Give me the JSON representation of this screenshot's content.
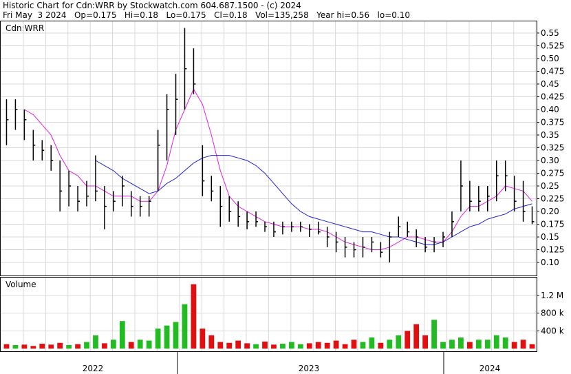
{
  "chart_data": [
    {
      "type": "ohlc",
      "title": "Historic Chart for Cdn:WRR by Stockwatch.com 604.687.1500 - (c) 2024",
      "subtitle": "Fri May  3 2024   Op=0.175   Hi=0.18   Lo=0.175   Cl=0.18   Vol=135,258   Year hi=0.56   lo=0.10",
      "label": "Cdn:WRR",
      "bar_color": "#000000",
      "high": [
        0.42,
        0.42,
        0.4,
        0.36,
        0.34,
        0.33,
        0.3,
        0.28,
        0.25,
        0.26,
        0.31,
        0.25,
        0.24,
        0.27,
        0.24,
        0.23,
        0.23,
        0.36,
        0.43,
        0.47,
        0.56,
        0.52,
        0.33,
        0.27,
        0.25,
        0.23,
        0.22,
        0.2,
        0.2,
        0.18,
        0.18,
        0.18,
        0.18,
        0.18,
        0.175,
        0.18,
        0.17,
        0.16,
        0.15,
        0.14,
        0.15,
        0.15,
        0.14,
        0.16,
        0.19,
        0.18,
        0.165,
        0.15,
        0.15,
        0.16,
        0.2,
        0.3,
        0.26,
        0.25,
        0.25,
        0.3,
        0.3,
        0.27,
        0.26,
        0.21
      ],
      "low": [
        0.33,
        0.36,
        0.34,
        0.3,
        0.3,
        0.28,
        0.2,
        0.21,
        0.2,
        0.21,
        0.22,
        0.165,
        0.2,
        0.21,
        0.19,
        0.19,
        0.19,
        0.24,
        0.3,
        0.35,
        0.4,
        0.43,
        0.23,
        0.22,
        0.17,
        0.18,
        0.17,
        0.165,
        0.17,
        0.16,
        0.15,
        0.155,
        0.16,
        0.16,
        0.15,
        0.155,
        0.13,
        0.12,
        0.11,
        0.11,
        0.11,
        0.12,
        0.11,
        0.1,
        0.15,
        0.15,
        0.13,
        0.12,
        0.12,
        0.13,
        0.15,
        0.2,
        0.2,
        0.2,
        0.2,
        0.22,
        0.24,
        0.2,
        0.18,
        0.175
      ],
      "close": [
        0.38,
        0.4,
        0.38,
        0.33,
        0.32,
        0.3,
        0.24,
        0.25,
        0.22,
        0.23,
        0.24,
        0.21,
        0.22,
        0.25,
        0.21,
        0.21,
        0.22,
        0.33,
        0.4,
        0.42,
        0.48,
        0.45,
        0.26,
        0.24,
        0.21,
        0.2,
        0.19,
        0.18,
        0.18,
        0.17,
        0.16,
        0.17,
        0.17,
        0.17,
        0.165,
        0.16,
        0.15,
        0.14,
        0.13,
        0.125,
        0.13,
        0.14,
        0.12,
        0.15,
        0.17,
        0.16,
        0.15,
        0.13,
        0.14,
        0.15,
        0.18,
        0.25,
        0.22,
        0.22,
        0.23,
        0.27,
        0.27,
        0.22,
        0.2,
        0.18
      ],
      "moving_averages": [
        {
          "color": "#e020e0",
          "values": [
            null,
            null,
            0.4,
            0.39,
            0.37,
            0.35,
            0.31,
            0.28,
            0.27,
            0.25,
            0.25,
            0.24,
            0.23,
            0.23,
            0.23,
            0.22,
            0.22,
            0.24,
            0.29,
            0.36,
            0.4,
            0.44,
            0.41,
            0.35,
            0.28,
            0.23,
            0.21,
            0.2,
            0.19,
            0.18,
            0.175,
            0.17,
            0.17,
            0.17,
            0.165,
            0.165,
            0.16,
            0.15,
            0.14,
            0.135,
            0.13,
            0.125,
            0.125,
            0.13,
            0.14,
            0.15,
            0.15,
            0.145,
            0.14,
            0.14,
            0.16,
            0.19,
            0.21,
            0.21,
            0.22,
            0.23,
            0.25,
            0.245,
            0.24,
            0.22
          ]
        },
        {
          "color": "#2020d0",
          "values": [
            null,
            null,
            null,
            null,
            null,
            null,
            null,
            null,
            null,
            null,
            0.3,
            0.29,
            0.28,
            0.265,
            0.255,
            0.245,
            0.235,
            0.24,
            0.255,
            0.265,
            0.28,
            0.295,
            0.305,
            0.31,
            0.31,
            0.31,
            0.305,
            0.3,
            0.29,
            0.275,
            0.255,
            0.235,
            0.215,
            0.2,
            0.19,
            0.185,
            0.18,
            0.175,
            0.17,
            0.165,
            0.16,
            0.16,
            0.155,
            0.15,
            0.15,
            0.145,
            0.14,
            0.135,
            0.135,
            0.14,
            0.15,
            0.16,
            0.17,
            0.175,
            0.185,
            0.19,
            0.195,
            0.205,
            0.21,
            0.215
          ]
        }
      ],
      "ylim": [
        0.0744,
        0.5729
      ],
      "yticks": [
        {
          "value": 0.1,
          "label": "0.10"
        },
        0.125,
        0.15,
        0.175,
        {
          "value": 0.2,
          "label": "0.20"
        },
        0.225,
        0.25,
        0.275,
        {
          "value": 0.3,
          "label": "0.30"
        },
        0.325,
        0.35,
        0.375,
        {
          "value": 0.4,
          "label": "0.40"
        },
        0.425,
        0.45,
        0.475,
        {
          "value": 0.5,
          "label": "0.50"
        },
        0.525,
        0.55
      ],
      "grid": true,
      "x_labels": [
        "2022",
        "2023",
        "2024"
      ]
    },
    {
      "type": "bar",
      "label": "Volume",
      "up_color": "#22bb22",
      "down_color": "#e01010",
      "values": [
        100000,
        80000,
        90000,
        60000,
        110000,
        90000,
        130000,
        80000,
        100000,
        150000,
        300000,
        120000,
        200000,
        620000,
        150000,
        200000,
        180000,
        450000,
        520000,
        600000,
        1000000,
        1450000,
        450000,
        300000,
        150000,
        130000,
        180000,
        120000,
        100000,
        160000,
        90000,
        110000,
        150000,
        100000,
        120000,
        150000,
        130000,
        180000,
        100000,
        200000,
        150000,
        250000,
        130000,
        200000,
        300000,
        400000,
        550000,
        300000,
        650000,
        150000,
        200000,
        250000,
        150000,
        200000,
        200000,
        300000,
        250000,
        150000,
        200000,
        100000
      ],
      "ylim": [
        -60000,
        1600000
      ],
      "yticks": [
        {
          "value": 400000,
          "label": "400 k"
        },
        {
          "value": 800000,
          "label": "800 k"
        },
        {
          "value": 1200000,
          "label": "1.2 M"
        }
      ],
      "grid": true
    }
  ]
}
